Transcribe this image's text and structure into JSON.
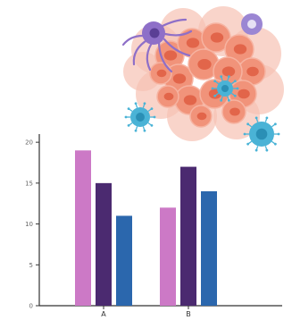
{
  "chart_data": {
    "type": "bar",
    "categories": [
      "A",
      "B"
    ],
    "series": [
      {
        "values": [
          19,
          12
        ],
        "color": "#cc79c6"
      },
      {
        "values": [
          15,
          17
        ],
        "color": "#4b2a70"
      },
      {
        "values": [
          11,
          14
        ],
        "color": "#2b67ad"
      }
    ],
    "ylim": [
      0,
      21
    ],
    "yticks": [
      0,
      5,
      10,
      15,
      20
    ],
    "ytick_labels": [
      "0",
      "5",
      "10",
      "15",
      "20"
    ],
    "grid": false,
    "legend": "none"
  },
  "illustration": {
    "subject": "cancer cells with immune cells and virus particles",
    "colors": {
      "tumor": "#f1937a",
      "tumor_nucleus": "#e2654a",
      "tumor_halo": "#f7c2b3",
      "virus": "#4ab3d6",
      "virus_core": "#2a8fb5",
      "immune_cell": "#8e6fc8",
      "immune_nucleus": "#5a3f95"
    }
  }
}
